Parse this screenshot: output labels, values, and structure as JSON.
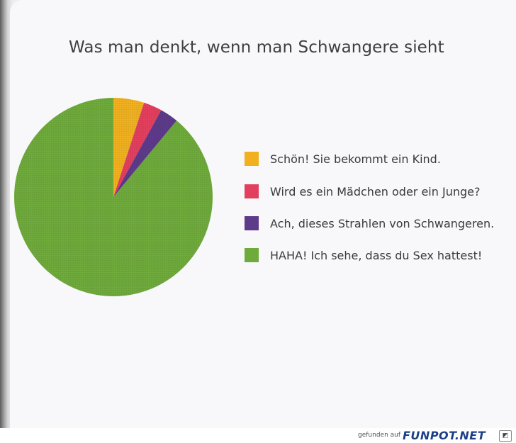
{
  "chart_data": {
    "type": "pie",
    "title": "Was man denkt, wenn man Schwangere sieht",
    "categories": [
      "Schön! Sie bekommt ein Kind.",
      "Wird es ein Mädchen oder ein Junge?",
      "Ach, dieses Strahlen von Schwangeren.",
      "HAHA! Ich sehe, dass du Sex hattest!"
    ],
    "values": [
      5,
      3,
      3,
      89
    ],
    "colors": [
      "#f0b020",
      "#e23f5e",
      "#5d3a8a",
      "#6faa3c"
    ],
    "legend_position": "right"
  },
  "footer": {
    "found_on": "gefunden auf",
    "site": "FUNPOT.NET"
  }
}
